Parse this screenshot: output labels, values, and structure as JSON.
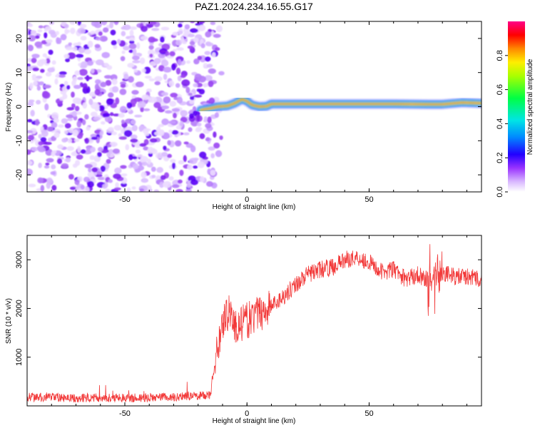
{
  "title": "PAZ1.2024.234.16.55.G17",
  "colors": {
    "snr_line": "#f23a3a",
    "colormap": [
      "#ffffff",
      "#e9d5ff",
      "#9a3cf0",
      "#3300ff",
      "#0044ff",
      "#00c8ff",
      "#00ff66",
      "#aaff00",
      "#ffee00",
      "#ff8800",
      "#ff0000",
      "#ff00aa"
    ]
  },
  "chart_data": [
    {
      "type": "heatmap",
      "xlabel": "Height of straight line (km)",
      "ylabel": "Frequency (Hz)",
      "xlim": [
        -90,
        96
      ],
      "ylim": [
        -25,
        25
      ],
      "xticks": [
        -50,
        0,
        50
      ],
      "yticks": [
        -20,
        -10,
        0,
        10,
        20
      ],
      "noise_region_x": [
        -90,
        -14
      ],
      "signal_ridge": {
        "description_points": [
          [
            -19,
            -1.0
          ],
          [
            -15,
            -0.5
          ],
          [
            -12,
            0.0
          ],
          [
            -8,
            0.2
          ],
          [
            -5,
            1.0
          ],
          [
            -2,
            2.2
          ],
          [
            0,
            1.6
          ],
          [
            2,
            0.5
          ],
          [
            5,
            0.0
          ],
          [
            8,
            0.1
          ],
          [
            10,
            0.8
          ],
          [
            20,
            0.8
          ],
          [
            40,
            0.8
          ],
          [
            60,
            0.8
          ],
          [
            75,
            0.7
          ],
          [
            80,
            0.7
          ],
          [
            88,
            1.2
          ],
          [
            96,
            1.0
          ]
        ]
      },
      "colorbar": {
        "label": "Normalized spectral amplitude",
        "range": [
          0.0,
          1.0
        ],
        "ticks": [
          0.0,
          0.2,
          0.4,
          0.6,
          0.8
        ],
        "tick_labels": [
          "0.0",
          "0.2",
          "0.4",
          "0.6",
          "0.8"
        ]
      }
    },
    {
      "type": "line",
      "xlabel": "Height of straight line (km)",
      "ylabel": "SNR (10 * v/v)",
      "xlim": [
        -90,
        96
      ],
      "ylim": [
        0,
        3500
      ],
      "xticks": [
        -50,
        0,
        50
      ],
      "yticks": [
        1000,
        2000,
        3000
      ],
      "series": [
        {
          "x": [
            -90,
            -80,
            -70,
            -60,
            -50,
            -40,
            -30,
            -20,
            -15,
            -12,
            -10,
            -7,
            -5,
            0,
            5,
            10,
            15,
            20,
            25,
            30,
            35,
            40,
            45,
            50,
            55,
            60,
            65,
            70,
            75,
            80,
            85,
            90,
            96
          ],
          "values": [
            180,
            170,
            160,
            170,
            160,
            175,
            180,
            210,
            220,
            1200,
            1700,
            2000,
            1600,
            1750,
            1900,
            2050,
            2250,
            2500,
            2700,
            2800,
            2850,
            3000,
            3050,
            2950,
            2750,
            2800,
            2600,
            2700,
            2550,
            2750,
            2650,
            2650,
            2600
          ]
        }
      ]
    }
  ]
}
